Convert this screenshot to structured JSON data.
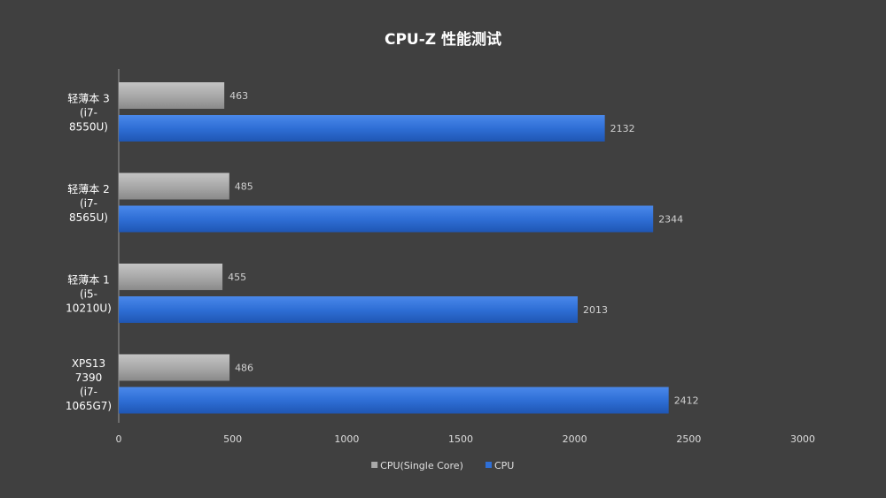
{
  "chart_data": {
    "type": "bar",
    "orientation": "horizontal",
    "title": "CPU-Z 性能测试",
    "xlabel": "",
    "ylabel": "",
    "xlim": [
      0,
      3000
    ],
    "x_ticks": [
      "0",
      "500",
      "1000",
      "1500",
      "2000",
      "2500",
      "3000"
    ],
    "grid": false,
    "legend_position": "bottom",
    "categories": [
      [
        "轻薄本 3",
        "(i7-",
        "8550U)"
      ],
      [
        "轻薄本 2",
        "(i7-",
        "8565U)"
      ],
      [
        "轻薄本 1",
        "(i5-",
        "10210U)"
      ],
      [
        "XPS13",
        "7390",
        "(i7-",
        "1065G7)"
      ]
    ],
    "series": [
      {
        "name": "CPU(Single Core)",
        "values": [
          463,
          485,
          455,
          486
        ],
        "color": "#a9a9a9"
      },
      {
        "name": "CPU",
        "values": [
          2132,
          2344,
          2013,
          2412
        ],
        "color": "#2f6fd6"
      }
    ]
  }
}
